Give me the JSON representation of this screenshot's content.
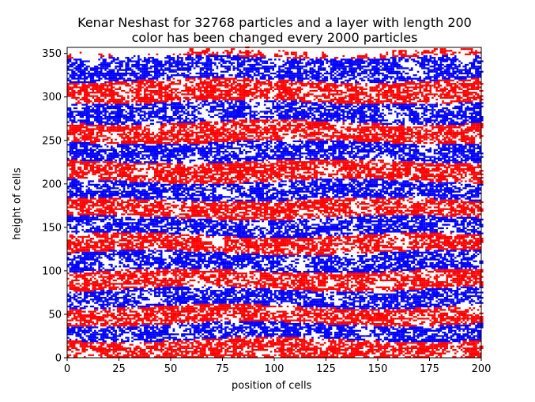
{
  "chart_data": {
    "type": "scatter",
    "title_line1": "Kenar Neshast for 32768 particles and a layer with length 200",
    "title_line2": "color has been changed every 2000 particles",
    "xlabel": "position of cells",
    "ylabel": "height of cells",
    "xlim": [
      0,
      200
    ],
    "ylim": [
      0,
      357
    ],
    "x_ticks": [
      0,
      25,
      50,
      75,
      100,
      125,
      150,
      175,
      200
    ],
    "y_ticks": [
      0,
      50,
      100,
      150,
      200,
      250,
      300,
      350
    ],
    "grid": false,
    "legend": "none",
    "particles_total": 32768,
    "layer_length": 200,
    "color_change_every": 2000,
    "colors": [
      "#ff0000",
      "#0000ff"
    ],
    "band_tops": [
      20,
      38,
      58,
      78,
      99,
      120,
      140,
      160,
      181,
      202,
      225,
      247,
      270,
      293,
      318,
      345,
      357
    ]
  }
}
